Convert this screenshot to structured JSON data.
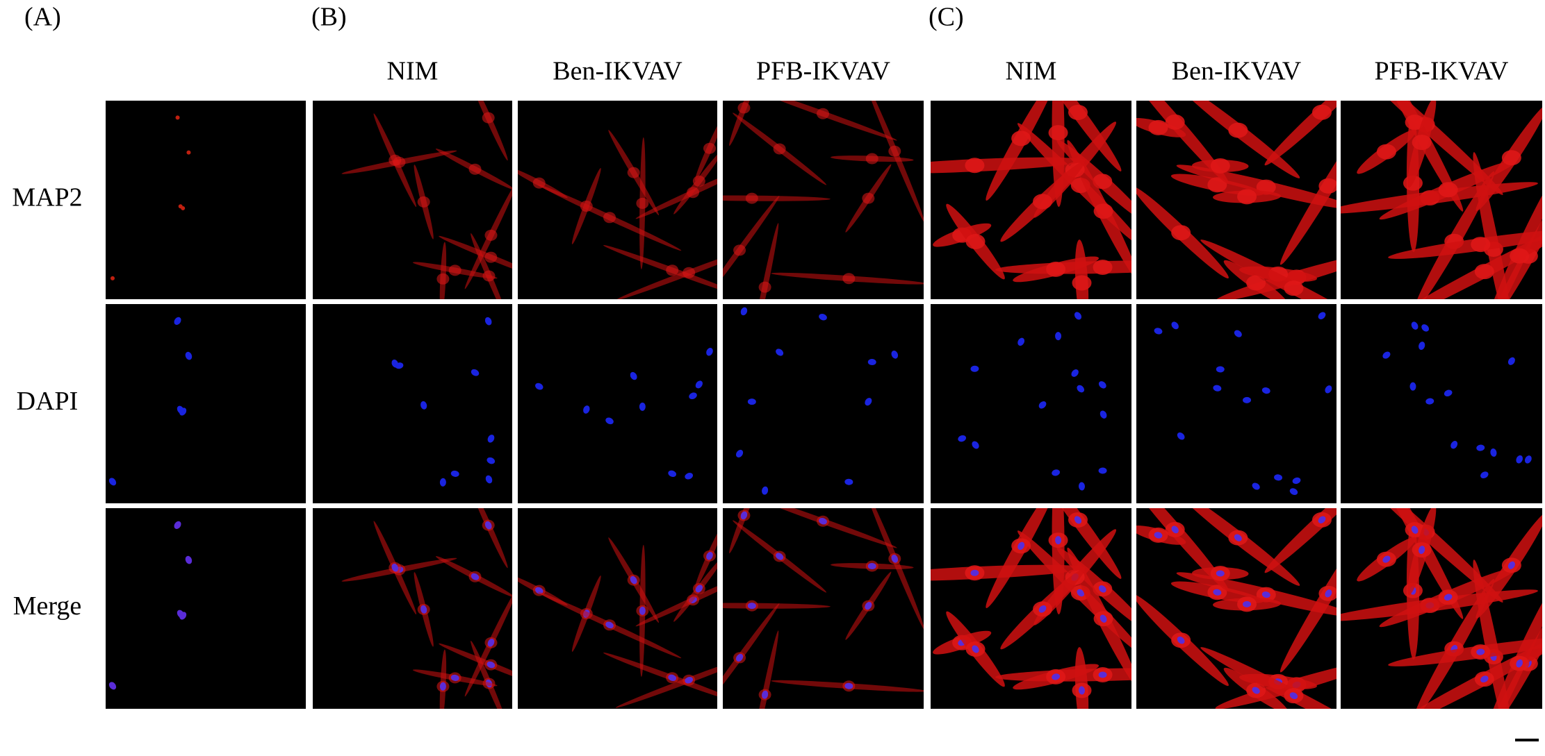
{
  "panel_labels": [
    "(A)",
    "(B)",
    "(C)"
  ],
  "groups": [
    {
      "columns": [
        "NIM",
        "Ben-IKVAV",
        "PFB-IKVAV"
      ]
    },
    {
      "columns": [
        "NIM",
        "Ben-IKVAV",
        "PFB-IKVAV"
      ]
    }
  ],
  "rows": [
    "MAP2",
    "DAPI",
    "Merge"
  ]
}
